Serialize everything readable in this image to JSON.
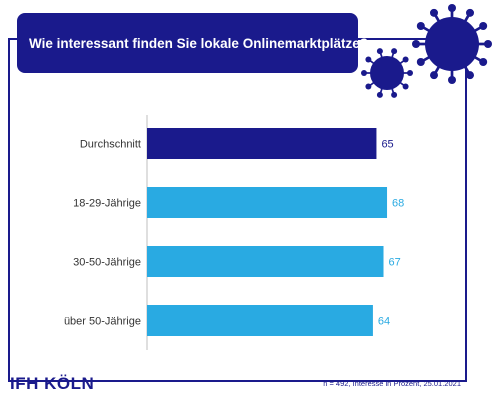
{
  "header": {
    "title": "Wie interessant finden Sie lokale Onlinemarktplätze?"
  },
  "chart_data": {
    "type": "bar",
    "orientation": "horizontal",
    "categories": [
      "Durchschnitt",
      "18-29-Jährige",
      "30-50-Jährige",
      "über 50-Jährige"
    ],
    "values": [
      65,
      68,
      67,
      64
    ],
    "bar_colors": [
      "#1a1a8c",
      "#29aae2",
      "#29aae2",
      "#29aae2"
    ],
    "label_colors": [
      "#1a1a8c",
      "#29aae2",
      "#29aae2",
      "#29aae2"
    ],
    "xlim": [
      0,
      100
    ],
    "grid": false
  },
  "footer": {
    "brand": "IFH KÖLN",
    "note": "n = 492,  Interesse in Prozent, 25.01.2021"
  },
  "colors": {
    "navy": "#1a1a8c",
    "light_blue": "#29aae2"
  },
  "icons": [
    "virus-icon-large",
    "virus-icon-small"
  ]
}
